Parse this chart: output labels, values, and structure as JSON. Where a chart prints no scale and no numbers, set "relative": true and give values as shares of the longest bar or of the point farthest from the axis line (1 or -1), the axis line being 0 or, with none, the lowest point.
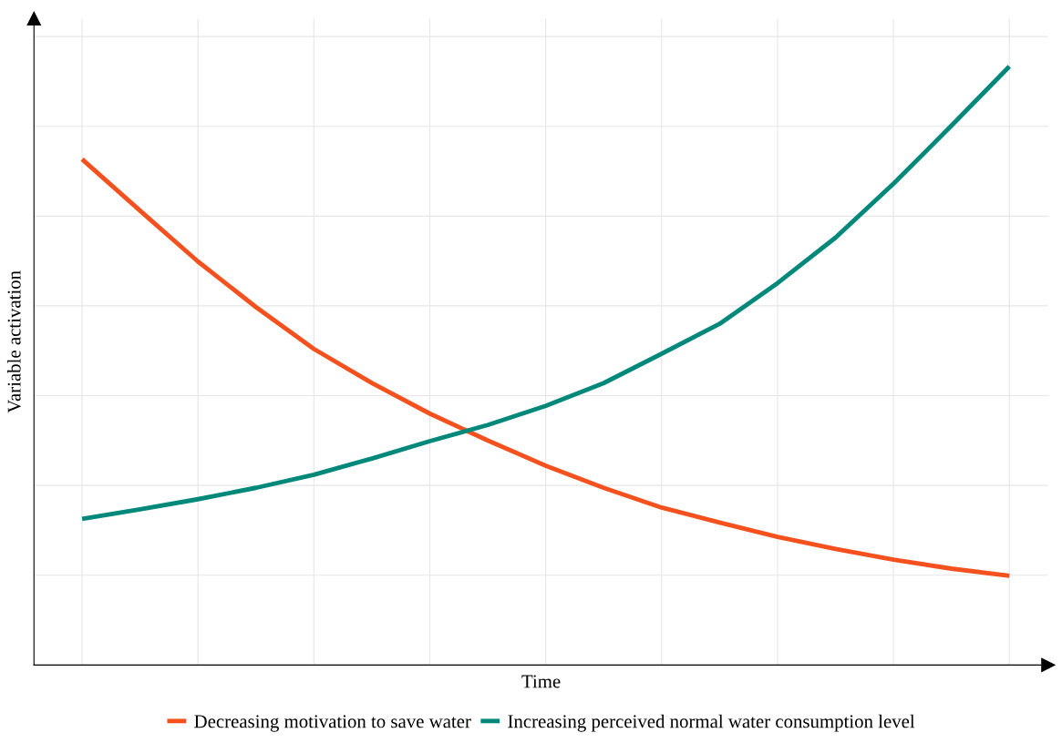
{
  "chart_data": {
    "type": "line",
    "relative": true,
    "xlabel": "Time",
    "ylabel": "Variable activation",
    "categories": [
      null,
      null,
      null,
      null,
      null,
      null,
      null,
      null,
      null,
      null,
      null,
      null,
      null,
      null,
      null,
      null,
      null
    ],
    "grid": true,
    "legend": "bottom",
    "marker": "none",
    "line_style": "solid",
    "series": [
      {
        "name": "Decreasing motivation to save water",
        "color": "#f4511e",
        "values": [
          0.845,
          0.759,
          0.674,
          0.598,
          0.528,
          0.471,
          0.42,
          0.375,
          0.333,
          0.296,
          0.263,
          0.238,
          0.214,
          0.194,
          0.176,
          0.161,
          0.149
        ]
      },
      {
        "name": "Increasing perceived normal water consumption level",
        "color": "#00897b",
        "values": [
          0.244,
          0.26,
          0.277,
          0.296,
          0.318,
          0.345,
          0.374,
          0.401,
          0.433,
          0.471,
          0.52,
          0.57,
          0.638,
          0.714,
          0.804,
          0.901,
          1.0
        ]
      }
    ]
  }
}
